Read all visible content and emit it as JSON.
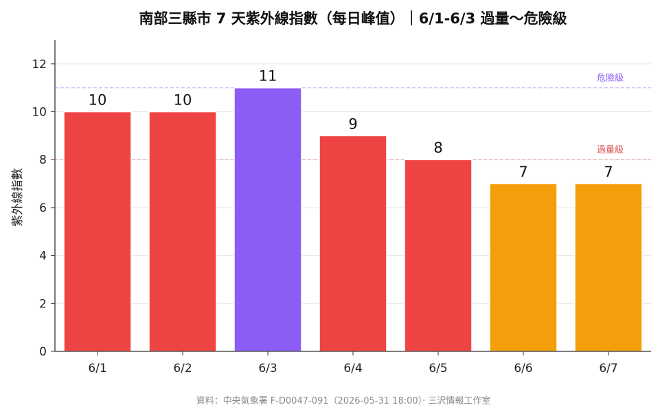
{
  "chart_data": {
    "type": "bar",
    "title": "南部三縣市 7 天紫外線指數（每日峰值）｜6/1-6/3 過量～危險級",
    "ylabel": "紫外線指數",
    "xlabel": "",
    "categories": [
      "6/1",
      "6/2",
      "6/3",
      "6/4",
      "6/5",
      "6/6",
      "6/7"
    ],
    "values": [
      10,
      10,
      11,
      9,
      8,
      7,
      7
    ],
    "bar_colors": [
      "#ef4444",
      "#ef4444",
      "#8b5cf6",
      "#ef4444",
      "#ef4444",
      "#f59e0b",
      "#f59e0b"
    ],
    "ylim": [
      0,
      13
    ],
    "yticks": [
      0,
      2,
      4,
      6,
      8,
      10,
      12
    ],
    "grid": "horizontal",
    "reference_lines": [
      {
        "value": 11,
        "label": "危險級",
        "color": "#8b5cf6"
      },
      {
        "value": 8,
        "label": "過量級",
        "color": "#d9534f"
      }
    ]
  },
  "footer": {
    "source": "資料：中央氣象署 F-D0047-091（2026-05-31 18:00）· 三沢情報工作室"
  }
}
